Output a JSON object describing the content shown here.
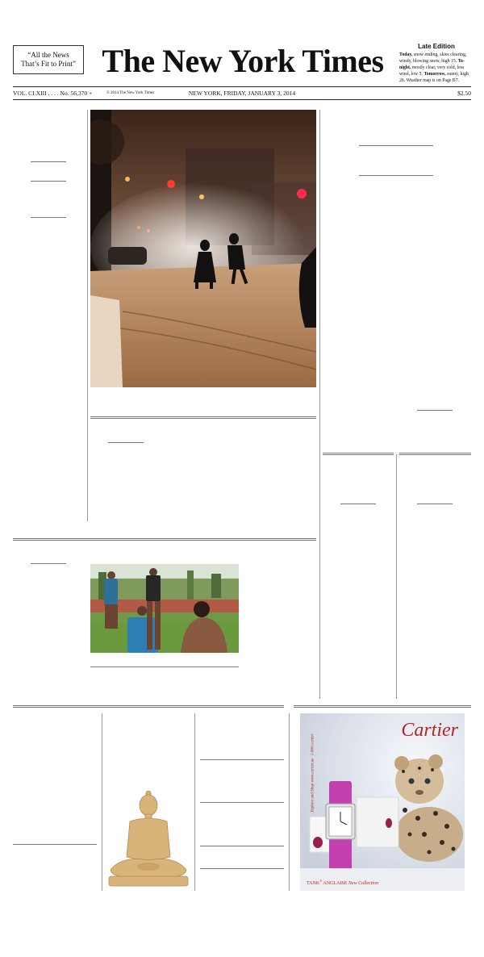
{
  "masthead": {
    "ear_left_line1": "“All the News",
    "ear_left_line2": "That’s Fit to Print”",
    "nameplate": "The New York Times",
    "edition": "Late Edition",
    "weather_today_label": "Today,",
    "weather_today_text": " snow ending, skies clearing, windy, blowing snow, high 15. ",
    "weather_tonight_label": "To­night,",
    "weather_tonight_text": " mostly clear, very cold, less wind, low 5. ",
    "weather_tomorrow_label": "Tomorrow,",
    "weather_tomorrow_text": " sunny, high 26. Weather map is on Page B7."
  },
  "dateline": {
    "volume": "VOL. CLXIII . . . . No. 56,370 +",
    "copyright": "© 2014 The New York Times",
    "city_date": "NEW YORK, FRIDAY, JANUARY 3, 2014",
    "price": "$2.50"
  },
  "ad": {
    "brand": "Cartier",
    "tagline_part1": "TANK",
    "tagline_reg": "®",
    "tagline_part2": " ANGLAISE ",
    "tagline_part3": "New Collection",
    "side_text": "Explore and Shop www.cartier.us · 1-800-cartier",
    "colors": {
      "brand_red": "#b3242b",
      "watch_pink": "#c43fb0"
    }
  }
}
